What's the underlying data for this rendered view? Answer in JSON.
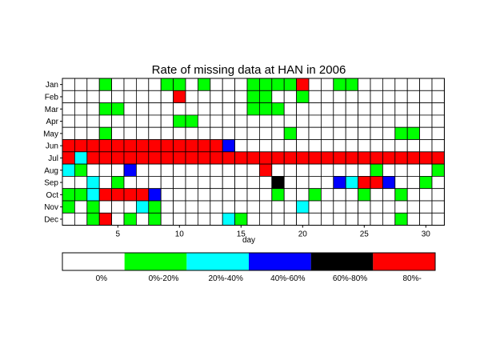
{
  "chart_data": {
    "type": "heatmap",
    "title": "Rate of missing data at HAN in 2006",
    "xlabel": "day",
    "ylabel": "",
    "x_ticks": [
      5,
      10,
      15,
      20,
      25,
      30
    ],
    "xlim": [
      1,
      31
    ],
    "months": [
      "Jan",
      "Feb",
      "Mar",
      "Apr",
      "May",
      "Jun",
      "Jul",
      "Aug",
      "Sep",
      "Oct",
      "Nov",
      "Dec"
    ],
    "days": [
      1,
      2,
      3,
      4,
      5,
      6,
      7,
      8,
      9,
      10,
      11,
      12,
      13,
      14,
      15,
      16,
      17,
      18,
      19,
      20,
      21,
      22,
      23,
      24,
      25,
      26,
      27,
      28,
      29,
      30,
      31
    ],
    "legend": {
      "placement": "below",
      "entries": [
        {
          "label": "0%",
          "color": "#ffffff"
        },
        {
          "label": "0%-20%",
          "color": "#00ff00"
        },
        {
          "label": "20%-40%",
          "color": "#00ffff"
        },
        {
          "label": "40%-60%",
          "color": "#0000ff"
        },
        {
          "label": "60%-80%",
          "color": "#000000"
        },
        {
          "label": "80%-",
          "color": "#ff0000"
        }
      ]
    },
    "grid": true,
    "category_index_note_units": "0=0%, 1=0%-20%, 2=20%-40%, 3=40%-60%, 4=60%-80%, 5=80%-",
    "values": [
      [
        0,
        0,
        0,
        1,
        0,
        0,
        0,
        0,
        1,
        1,
        0,
        1,
        0,
        0,
        0,
        1,
        1,
        1,
        1,
        5,
        0,
        0,
        1,
        1,
        0,
        0,
        0,
        0,
        0,
        0,
        0
      ],
      [
        0,
        0,
        0,
        0,
        0,
        0,
        0,
        0,
        0,
        5,
        0,
        0,
        0,
        0,
        0,
        1,
        1,
        0,
        0,
        1,
        0,
        0,
        0,
        0,
        0,
        0,
        0,
        0,
        0,
        0,
        0
      ],
      [
        0,
        0,
        0,
        1,
        1,
        0,
        0,
        0,
        0,
        0,
        0,
        0,
        0,
        0,
        0,
        1,
        1,
        1,
        0,
        0,
        0,
        0,
        0,
        0,
        0,
        0,
        0,
        0,
        0,
        0,
        0
      ],
      [
        0,
        0,
        0,
        0,
        0,
        0,
        0,
        0,
        0,
        1,
        1,
        0,
        0,
        0,
        0,
        0,
        0,
        0,
        0,
        0,
        0,
        0,
        0,
        0,
        0,
        0,
        0,
        0,
        0,
        0,
        0
      ],
      [
        0,
        0,
        0,
        1,
        0,
        0,
        0,
        0,
        0,
        0,
        0,
        0,
        0,
        0,
        0,
        0,
        0,
        0,
        1,
        0,
        0,
        0,
        0,
        0,
        0,
        0,
        0,
        1,
        1,
        0,
        0
      ],
      [
        5,
        5,
        5,
        5,
        5,
        5,
        5,
        5,
        5,
        5,
        5,
        5,
        5,
        3,
        0,
        0,
        0,
        0,
        0,
        0,
        0,
        0,
        0,
        0,
        0,
        0,
        0,
        0,
        0,
        0,
        0
      ],
      [
        5,
        2,
        5,
        5,
        5,
        5,
        5,
        5,
        5,
        5,
        5,
        5,
        5,
        5,
        5,
        5,
        5,
        5,
        5,
        5,
        5,
        5,
        5,
        5,
        5,
        5,
        5,
        5,
        5,
        5,
        5
      ],
      [
        2,
        1,
        0,
        0,
        0,
        3,
        0,
        0,
        0,
        0,
        0,
        0,
        0,
        0,
        0,
        0,
        5,
        0,
        0,
        0,
        0,
        0,
        0,
        0,
        0,
        1,
        0,
        0,
        0,
        0,
        1
      ],
      [
        0,
        0,
        2,
        0,
        1,
        0,
        0,
        0,
        0,
        0,
        0,
        0,
        0,
        0,
        0,
        0,
        0,
        4,
        0,
        0,
        0,
        0,
        3,
        2,
        5,
        5,
        3,
        0,
        0,
        1,
        0
      ],
      [
        1,
        1,
        2,
        5,
        5,
        5,
        5,
        3,
        0,
        0,
        0,
        0,
        0,
        0,
        0,
        0,
        0,
        1,
        0,
        0,
        1,
        0,
        0,
        0,
        1,
        0,
        0,
        1,
        0,
        0,
        0
      ],
      [
        1,
        0,
        1,
        0,
        0,
        0,
        2,
        1,
        0,
        0,
        0,
        0,
        0,
        0,
        0,
        0,
        0,
        0,
        0,
        2,
        0,
        0,
        0,
        0,
        0,
        0,
        0,
        0,
        0,
        0,
        0
      ],
      [
        0,
        0,
        1,
        5,
        0,
        1,
        0,
        1,
        0,
        0,
        0,
        0,
        0,
        2,
        1,
        0,
        0,
        0,
        0,
        0,
        0,
        0,
        0,
        0,
        0,
        0,
        0,
        1,
        0,
        0,
        0
      ]
    ]
  }
}
